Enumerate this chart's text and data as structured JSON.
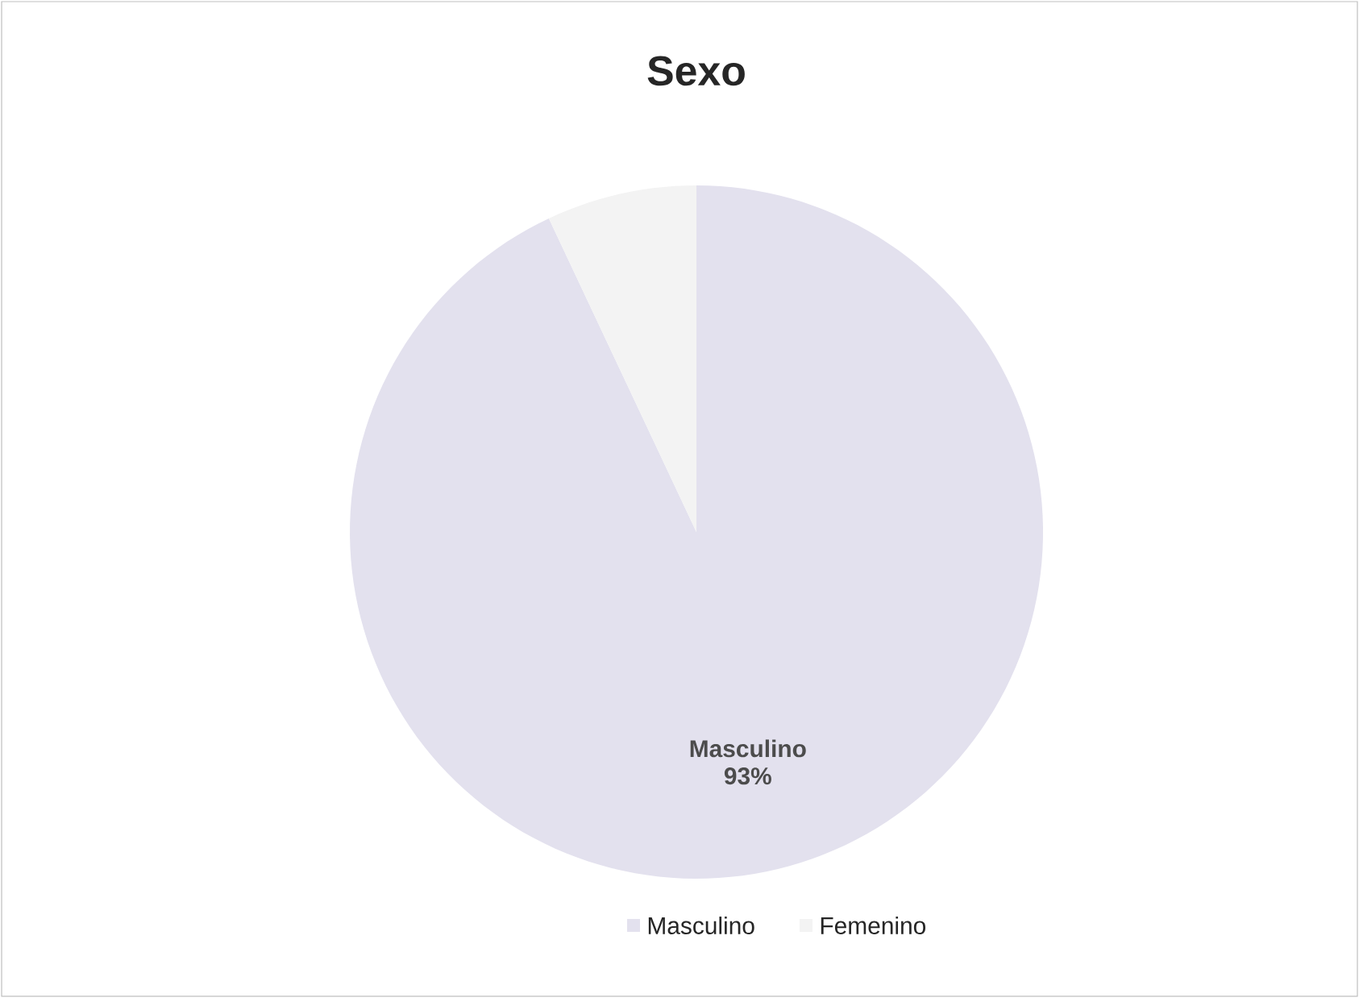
{
  "chart_data": {
    "type": "pie",
    "title": "Sexo",
    "categories": [
      "Masculino",
      "Femenino"
    ],
    "values": [
      93,
      7
    ],
    "colors": [
      "#e3e1ee",
      "#f3f3f3"
    ],
    "value_labels": [
      "93%",
      null
    ],
    "legend": "bottom"
  }
}
